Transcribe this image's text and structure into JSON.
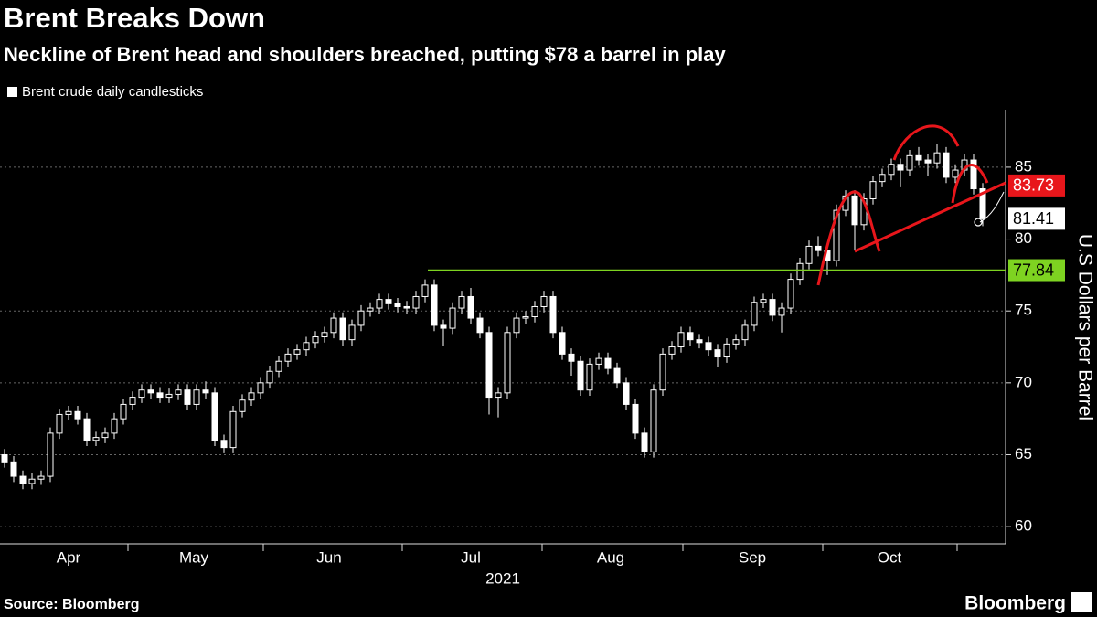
{
  "chart_data": {
    "type": "candlestick",
    "title": "Brent Breaks Down",
    "subtitle": "Neckline of Brent head and shoulders breached, putting $78 a barrel in play",
    "legend_label": "Brent crude daily candlesticks",
    "y_axis_label": "U.S Dollars per Barrel",
    "x_axis_year": "2021",
    "source": "Source: Bloomberg",
    "brand": "Bloomberg",
    "ylim": [
      58.8,
      89
    ],
    "yticks": [
      60,
      65,
      70,
      75,
      80,
      85
    ],
    "xlim": [
      -0.5,
      109.5
    ],
    "xticks": [
      {
        "value": 7,
        "label": "Apr"
      },
      {
        "value": 20.7,
        "label": "May"
      },
      {
        "value": 35.5,
        "label": "Jun"
      },
      {
        "value": 51,
        "label": "Jul"
      },
      {
        "value": 66.3,
        "label": "Aug"
      },
      {
        "value": 81.8,
        "label": "Sep"
      },
      {
        "value": 96.8,
        "label": "Oct"
      }
    ],
    "x_separators": [
      13.5,
      28.3,
      43.5,
      58.8,
      74.2,
      89.5,
      104.2
    ],
    "grid": true,
    "color": "#ffffff",
    "reference_lines": [
      {
        "value": 77.84,
        "color": "#7ed321"
      },
      {
        "value": 83.73,
        "color": "#e8161b"
      }
    ],
    "last_price": 81.41,
    "candles": [
      [
        65,
        65.4,
        64.1,
        64.5
      ],
      [
        64.5,
        64.9,
        63.1,
        63.5
      ],
      [
        63.5,
        63.9,
        62.6,
        63
      ],
      [
        63,
        63.7,
        62.6,
        63.3
      ],
      [
        63.3,
        63.9,
        62.9,
        63.5
      ],
      [
        63.5,
        66.9,
        63.1,
        66.5
      ],
      [
        66.5,
        68.2,
        66.1,
        67.8
      ],
      [
        67.8,
        68.4,
        67.4,
        68
      ],
      [
        68,
        68.4,
        67.1,
        67.5
      ],
      [
        67.5,
        67.9,
        65.6,
        66
      ],
      [
        66,
        66.6,
        65.6,
        66.2
      ],
      [
        66.2,
        66.9,
        65.8,
        66.5
      ],
      [
        66.5,
        67.9,
        66.1,
        67.5
      ],
      [
        67.5,
        68.9,
        67.1,
        68.5
      ],
      [
        68.5,
        69.4,
        68.1,
        69
      ],
      [
        69,
        69.9,
        68.6,
        69.5
      ],
      [
        69.5,
        69.9,
        68.9,
        69.3
      ],
      [
        69.3,
        69.7,
        68.6,
        69
      ],
      [
        69,
        69.6,
        68.6,
        69.2
      ],
      [
        69.2,
        69.9,
        68.8,
        69.5
      ],
      [
        69.5,
        69.9,
        68.1,
        68.5
      ],
      [
        68.5,
        69.9,
        68.1,
        69.5
      ],
      [
        69.5,
        70.1,
        68.9,
        69.3
      ],
      [
        69.3,
        69.7,
        65.6,
        66
      ],
      [
        66,
        66.4,
        65.1,
        65.5
      ],
      [
        65.5,
        68.4,
        65.1,
        68
      ],
      [
        68,
        69.2,
        67.6,
        68.8
      ],
      [
        68.8,
        69.7,
        68.4,
        69.3
      ],
      [
        69.3,
        70.4,
        68.9,
        70
      ],
      [
        70,
        71.2,
        69.6,
        70.8
      ],
      [
        70.8,
        71.9,
        70.4,
        71.5
      ],
      [
        71.5,
        72.4,
        71.1,
        72
      ],
      [
        72,
        72.7,
        71.6,
        72.3
      ],
      [
        72.3,
        73.2,
        71.9,
        72.8
      ],
      [
        72.8,
        73.6,
        72.4,
        73.2
      ],
      [
        73.2,
        73.9,
        72.8,
        73.5
      ],
      [
        73.5,
        74.9,
        73.1,
        74.5
      ],
      [
        74.5,
        74.9,
        72.6,
        73
      ],
      [
        73,
        74.4,
        72.6,
        74
      ],
      [
        74,
        75.4,
        73.6,
        75
      ],
      [
        75,
        75.6,
        74.6,
        75.2
      ],
      [
        75.2,
        76.2,
        74.8,
        75.8
      ],
      [
        75.8,
        76.2,
        75.1,
        75.5
      ],
      [
        75.5,
        75.9,
        74.9,
        75.3
      ],
      [
        75.3,
        75.7,
        74.8,
        75.2
      ],
      [
        75.2,
        76.4,
        74.8,
        76
      ],
      [
        76,
        77.2,
        75.6,
        76.8
      ],
      [
        76.8,
        77.2,
        73.6,
        74
      ],
      [
        74,
        74.4,
        72.6,
        73.8
      ],
      [
        73.8,
        75.6,
        73.4,
        75.2
      ],
      [
        75.2,
        76.4,
        74.8,
        76
      ],
      [
        76,
        76.6,
        74.1,
        74.5
      ],
      [
        74.5,
        74.9,
        73.1,
        73.5
      ],
      [
        73.5,
        73.9,
        67.8,
        69
      ],
      [
        69,
        69.7,
        67.6,
        69.3
      ],
      [
        69.3,
        73.9,
        68.9,
        73.5
      ],
      [
        73.5,
        74.9,
        73.1,
        74.5
      ],
      [
        74.5,
        75,
        74.1,
        74.6
      ],
      [
        74.6,
        75.7,
        74.2,
        75.3
      ],
      [
        75.3,
        76.4,
        74.9,
        76
      ],
      [
        76,
        76.4,
        73.1,
        73.5
      ],
      [
        73.5,
        73.9,
        71.6,
        72
      ],
      [
        72,
        72.4,
        70.5,
        71.5
      ],
      [
        71.5,
        71.9,
        69.1,
        69.5
      ],
      [
        69.5,
        71.7,
        69.1,
        71.3
      ],
      [
        71.3,
        72.1,
        70.9,
        71.7
      ],
      [
        71.7,
        72.1,
        70.6,
        71
      ],
      [
        71,
        71.4,
        69.6,
        70
      ],
      [
        70,
        70.4,
        68.1,
        68.5
      ],
      [
        68.5,
        68.9,
        66.1,
        66.5
      ],
      [
        66.5,
        66.9,
        64.8,
        65.2
      ],
      [
        65.2,
        69.9,
        64.8,
        69.5
      ],
      [
        69.5,
        72.4,
        69.1,
        72
      ],
      [
        72,
        72.9,
        71.6,
        72.5
      ],
      [
        72.5,
        73.9,
        72.1,
        73.5
      ],
      [
        73.5,
        73.9,
        72.6,
        73
      ],
      [
        73,
        73.4,
        72.4,
        72.8
      ],
      [
        72.8,
        73.2,
        71.9,
        72.3
      ],
      [
        72.3,
        72.7,
        71.1,
        71.8
      ],
      [
        71.8,
        73.1,
        71.4,
        72.7
      ],
      [
        72.7,
        73.4,
        72.3,
        73
      ],
      [
        73,
        74.4,
        72.6,
        74
      ],
      [
        74,
        76,
        73.6,
        75.6
      ],
      [
        75.6,
        76.2,
        75.2,
        75.8
      ],
      [
        75.8,
        76.2,
        74.3,
        74.7
      ],
      [
        74.7,
        75.6,
        73.5,
        75.2
      ],
      [
        75.2,
        77.6,
        74.8,
        77.2
      ],
      [
        77.2,
        78.7,
        76.8,
        78.3
      ],
      [
        78.3,
        79.9,
        77.9,
        79.5
      ],
      [
        79.5,
        80.2,
        78.8,
        79.2
      ],
      [
        79.2,
        79.6,
        77.5,
        78.5
      ],
      [
        78.5,
        82.4,
        78.1,
        82
      ],
      [
        82,
        83.4,
        81.6,
        83
      ],
      [
        83,
        83.4,
        79.2,
        81
      ],
      [
        81,
        83.2,
        80.6,
        82.8
      ],
      [
        82.8,
        84.4,
        82.4,
        84
      ],
      [
        84,
        84.9,
        83.6,
        84.5
      ],
      [
        84.5,
        85.6,
        84.1,
        85.2
      ],
      [
        85.2,
        85.6,
        83.6,
        84.8
      ],
      [
        84.8,
        86.2,
        84.4,
        85.8
      ],
      [
        85.8,
        86.4,
        85.1,
        85.5
      ],
      [
        85.5,
        85.9,
        84.4,
        85.3
      ],
      [
        85.3,
        86.6,
        84.9,
        86
      ],
      [
        86,
        86.4,
        83.9,
        84.3
      ],
      [
        84.3,
        85.2,
        83.9,
        84.8
      ],
      [
        84.8,
        85.9,
        84.4,
        85.5
      ],
      [
        85.5,
        85.9,
        83.1,
        83.5
      ],
      [
        83.5,
        83.9,
        80.9,
        81.41
      ]
    ]
  }
}
